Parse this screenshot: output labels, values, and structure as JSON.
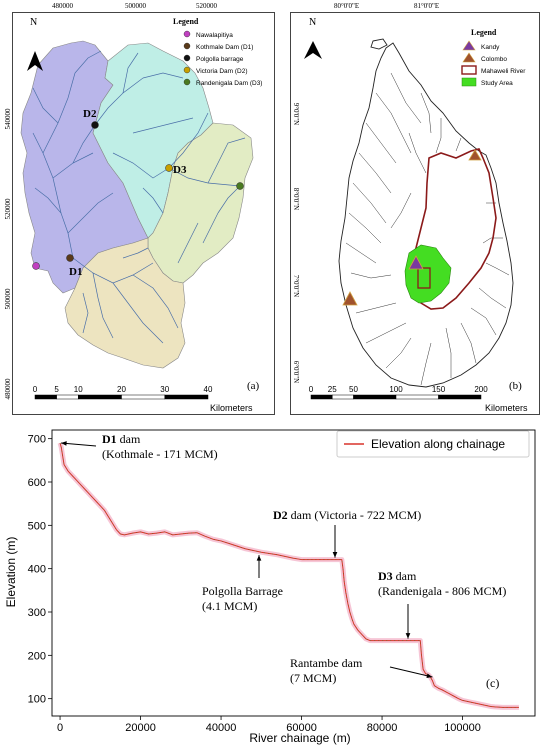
{
  "panel_a": {
    "letter": "(a)",
    "north": "N",
    "top_ticks": [
      "480000",
      "500000",
      "520000"
    ],
    "left_ticks": [
      "540000",
      "520000",
      "500000",
      "480000"
    ],
    "legend_title": "Legend",
    "legend": [
      {
        "label": "Nawalapitiya",
        "color": "#c040c0"
      },
      {
        "label": "Kothmale Dam (D1)",
        "color": "#5a3a1a"
      },
      {
        "label": "Polgolla barrage",
        "color": "#111111"
      },
      {
        "label": "Victoria Dam (D2)",
        "color": "#c8a000"
      },
      {
        "label": "Randenigala Dam (D3)",
        "color": "#4a7a20"
      }
    ],
    "labels": {
      "d1": "D1",
      "d2": "D2",
      "d3": "D3"
    },
    "scale_ticks": [
      "0",
      "5",
      "10",
      "20",
      "30",
      "40"
    ],
    "scale_unit": "Kilometers",
    "colors": {
      "blue": "#b9b6ea",
      "cyan": "#bfeee6",
      "green": "#e2ecc4",
      "tan": "#ede4c0",
      "river": "#4a6fa8"
    }
  },
  "panel_b": {
    "letter": "(b)",
    "north": "N",
    "top_ticks": [
      "80°0'0\"E",
      "81°0'0\"E"
    ],
    "right_ticks": [
      "9°0'0\"N",
      "8°0'0\"N",
      "7°0'0\"N",
      "6°0'0\"N"
    ],
    "legend_title": "Legend",
    "legend": [
      {
        "label": "Kandy",
        "color": "#7a3aa0"
      },
      {
        "label": "Colombo",
        "color": "#a0522d"
      },
      {
        "label": "Mahaweli River",
        "color": "#8b1a1a"
      },
      {
        "label": "Study Area",
        "color": "#44dd22"
      }
    ],
    "scale_ticks": [
      "0",
      "25",
      "50",
      "100",
      "150",
      "200"
    ],
    "scale_unit": "Kilometers"
  },
  "panel_c": {
    "letter": "(c)",
    "legend_label": "Elevation along chainage",
    "annotations": [
      {
        "bold": "D1",
        "text": " dam",
        "line2": "(Kothmale - 171 MCM)"
      },
      {
        "bold": "D2",
        "text": " dam (Victoria - 722 MCM)",
        "line2": ""
      },
      {
        "bold": "D3",
        "text": " dam",
        "line2": "(Randenigala - 806 MCM)"
      },
      {
        "bold": "",
        "text": "Polgolla Barrage",
        "line2": "(4.1 MCM)"
      },
      {
        "bold": "",
        "text": "Rantambe dam",
        "line2": "(7 MCM)"
      }
    ]
  },
  "chart_data": {
    "type": "line",
    "xlabel": "River chainage (m)",
    "ylabel": "Elevation (m)",
    "xlim": [
      -2000,
      118000
    ],
    "ylim": [
      60,
      720
    ],
    "xticks": [
      0,
      20000,
      40000,
      60000,
      80000,
      100000
    ],
    "yticks": [
      100,
      200,
      300,
      400,
      500,
      600,
      700
    ],
    "series": [
      {
        "name": "Elevation along chainage",
        "color": "#d9342b",
        "x": [
          0,
          300,
          1000,
          2000,
          3000,
          4000,
          5000,
          6000,
          7000,
          8000,
          9000,
          10000,
          11000,
          12000,
          13000,
          14000,
          15000,
          16000,
          18000,
          20000,
          22000,
          24000,
          26000,
          28000,
          30000,
          32000,
          34000,
          36000,
          38000,
          40000,
          42000,
          44000,
          46000,
          48000,
          50000,
          52000,
          54000,
          56000,
          58000,
          60000,
          62000,
          64000,
          66000,
          68000,
          70000,
          70300,
          70600,
          71000,
          71500,
          72000,
          72500,
          73000,
          74000,
          75000,
          76000,
          77000,
          78000,
          80000,
          82000,
          84000,
          86000,
          88000,
          89500,
          89800,
          90200,
          90800,
          91500,
          92000,
          92500,
          93000,
          94000,
          95000,
          96000,
          97000,
          98000,
          99000,
          100000,
          101000,
          102000,
          103000,
          104000,
          105000,
          106000,
          107000,
          108000,
          110000,
          112000,
          114000
        ],
        "y": [
          690,
          680,
          640,
          625,
          615,
          605,
          595,
          585,
          575,
          565,
          555,
          545,
          535,
          520,
          505,
          490,
          480,
          478,
          482,
          485,
          480,
          482,
          485,
          478,
          480,
          482,
          483,
          475,
          468,
          464,
          458,
          452,
          446,
          442,
          438,
          435,
          432,
          428,
          424,
          421,
          421,
          421,
          421,
          421,
          421,
          400,
          370,
          345,
          320,
          300,
          285,
          272,
          258,
          248,
          238,
          234,
          234,
          234,
          234,
          234,
          234,
          234,
          234,
          200,
          168,
          158,
          155,
          150,
          142,
          130,
          124,
          120,
          115,
          110,
          105,
          100,
          96,
          94,
          92,
          90,
          88,
          86,
          84,
          82,
          81,
          80,
          80,
          80
        ]
      }
    ]
  }
}
